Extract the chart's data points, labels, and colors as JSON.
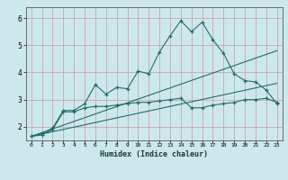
{
  "xlabel": "Humidex (Indice chaleur)",
  "bg_color": "#cde8ec",
  "grid_color": "#c9a8a8",
  "line_color": "#1e6e6a",
  "xlim": [
    -0.5,
    23.5
  ],
  "ylim": [
    1.5,
    6.4
  ],
  "xticks": [
    0,
    1,
    2,
    3,
    4,
    5,
    6,
    7,
    8,
    9,
    10,
    11,
    12,
    13,
    14,
    15,
    16,
    17,
    18,
    19,
    20,
    21,
    22,
    23
  ],
  "yticks": [
    2,
    3,
    4,
    5,
    6
  ],
  "line1_x": [
    0,
    1,
    2,
    3,
    4,
    5,
    6,
    7,
    8,
    9,
    10,
    11,
    12,
    13,
    14,
    15,
    16,
    17,
    18,
    19,
    20,
    21,
    22,
    23
  ],
  "line1_y": [
    1.65,
    1.75,
    1.95,
    2.6,
    2.6,
    2.85,
    3.55,
    3.2,
    3.45,
    3.4,
    4.05,
    3.95,
    4.75,
    5.35,
    5.9,
    5.5,
    5.85,
    5.2,
    4.7,
    3.95,
    3.7,
    3.65,
    3.35,
    2.85
  ],
  "line2_x": [
    0,
    1,
    2,
    3,
    4,
    5,
    6,
    7,
    8,
    9,
    10,
    11,
    12,
    13,
    14,
    15,
    16,
    17,
    18,
    19,
    20,
    21,
    22,
    23
  ],
  "line2_y": [
    1.65,
    1.7,
    1.9,
    2.55,
    2.55,
    2.7,
    2.75,
    2.75,
    2.8,
    2.85,
    2.9,
    2.9,
    2.95,
    3.0,
    3.05,
    2.7,
    2.7,
    2.8,
    2.85,
    2.9,
    3.0,
    3.0,
    3.05,
    2.9
  ],
  "line3_x": [
    0,
    23
  ],
  "line3_y": [
    1.65,
    4.8
  ],
  "line4_x": [
    0,
    23
  ],
  "line4_y": [
    1.65,
    3.6
  ]
}
